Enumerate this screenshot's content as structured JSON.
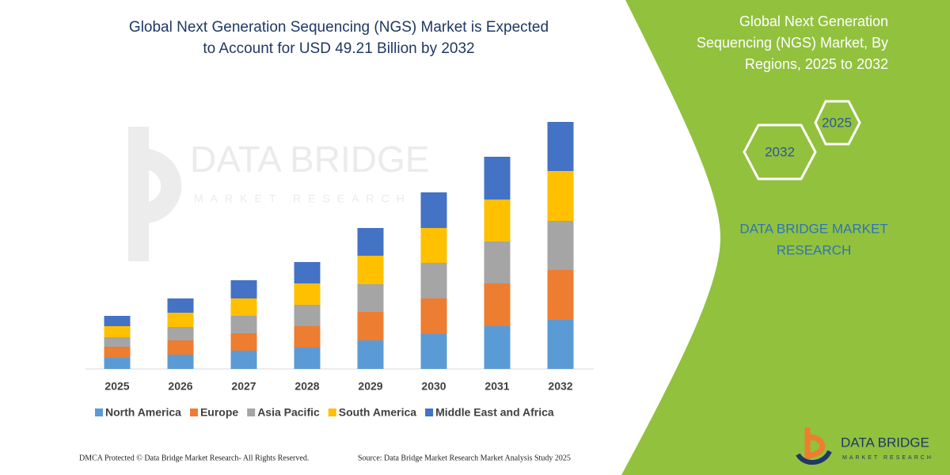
{
  "chart_data": {
    "type": "bar",
    "stacked": true,
    "title": [
      "Global Next Generation Sequencing (NGS) Market is Expected",
      "to Account for USD 49.21 Billion by 2032"
    ],
    "categories": [
      "2025",
      "2026",
      "2027",
      "2028",
      "2029",
      "2030",
      "2031",
      "2032"
    ],
    "series": [
      {
        "name": "North America",
        "color": "#5b9bd5",
        "values": [
          14,
          18,
          23,
          27,
          36,
          44,
          54,
          62
        ]
      },
      {
        "name": "Europe",
        "color": "#ed7d31",
        "values": [
          14,
          18,
          22,
          27,
          36,
          45,
          54,
          63
        ]
      },
      {
        "name": "Asia Pacific",
        "color": "#a5a5a5",
        "values": [
          12,
          17,
          22,
          27,
          35,
          45,
          53,
          62
        ]
      },
      {
        "name": "South America",
        "color": "#ffc000",
        "values": [
          14,
          18,
          22,
          27,
          36,
          44,
          53,
          63
        ]
      },
      {
        "name": "Middle East and Africa",
        "color": "#4472c4",
        "values": [
          13,
          18,
          23,
          27,
          35,
          45,
          54,
          62
        ]
      }
    ],
    "ylim": [
      0,
      320
    ],
    "grid": false,
    "legend": "bottom"
  },
  "watermark": {
    "title": "DATA BRIDGE",
    "subtitle": "MARKET RESEARCH"
  },
  "side_panel": {
    "title": [
      "Global Next Generation",
      "Sequencing (NGS) Market, By",
      "Regions, 2025 to 2032"
    ],
    "hexagons": [
      "2025",
      "2032"
    ],
    "brand": [
      "DATA BRIDGE MARKET",
      "RESEARCH"
    ]
  },
  "footer": {
    "left": "DMCA Protected © Data Bridge Market Research-  All Rights Reserved.",
    "right": "Source: Data Bridge Market Research  Market Analysis Study 2025"
  },
  "logo": {
    "title": "DATA BRIDGE",
    "subtitle": "MARKET RESEARCH"
  }
}
